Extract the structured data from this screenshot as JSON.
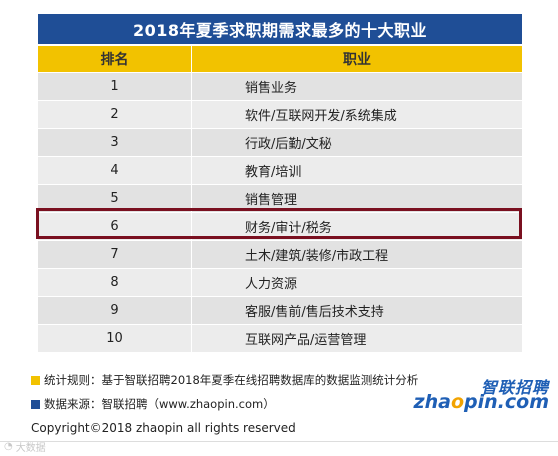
{
  "title": "2018年夏季求职期需求最多的十大职业",
  "columns": [
    "排名",
    "职业"
  ],
  "rows": [
    {
      "rank": "1",
      "job": "销售业务"
    },
    {
      "rank": "2",
      "job": "软件/互联网开发/系统集成"
    },
    {
      "rank": "3",
      "job": "行政/后勤/文秘"
    },
    {
      "rank": "4",
      "job": "教育/培训"
    },
    {
      "rank": "5",
      "job": "销售管理"
    },
    {
      "rank": "6",
      "job": "财务/审计/税务"
    },
    {
      "rank": "7",
      "job": "土木/建筑/装修/市政工程"
    },
    {
      "rank": "8",
      "job": "人力资源"
    },
    {
      "rank": "9",
      "job": "客服/售前/售后技术支持"
    },
    {
      "rank": "10",
      "job": "互联网产品/运营管理"
    }
  ],
  "highlighted_rank": "6",
  "notes": {
    "rule": "统计规则：基于智联招聘2018年夏季在线招聘数据库的数据监测统计分析",
    "source": "数据来源：智联招聘（www.zhaopin.com）"
  },
  "copyright": "Copyright©2018 zhaopin all rights reserved",
  "logo": {
    "cn": "智联招聘",
    "en_pre": "zha",
    "en_o": "o",
    "en_post": "pin.com"
  },
  "watermark": "大数据",
  "colors": {
    "title_bg": "#1f4e96",
    "header_bg": "#f2c200",
    "highlight_border": "#7a1020",
    "note_yellow": "#f2c200",
    "note_blue": "#1f4e96"
  }
}
